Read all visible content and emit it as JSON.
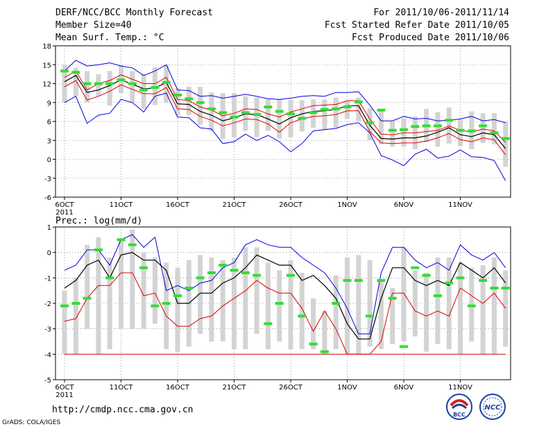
{
  "header": {
    "title": "DERF/NCC/BCC Monthly Forecast",
    "member": "Member Size=40",
    "variable": "Mean Surf. Temp.: °C",
    "period": "For 2011/10/06-2011/11/14",
    "refer": "Fcst Started Refer Date 2011/10/05",
    "produced": "Fcst Produced Date 2011/10/06"
  },
  "footer": {
    "url": "http://cmdp.ncc.cma.gov.cn",
    "grads": "GrADS: COLA/IGES"
  },
  "logos": {
    "bcc": "BCC",
    "ncc": "NCC"
  },
  "colors": {
    "bars": "#d3d3d3",
    "median": "#33dd33",
    "mean": "#000000",
    "spread": "#dd0000",
    "extreme": "#0000dd"
  },
  "chart_data": [
    {
      "type": "line",
      "title": "Mean Surf. Temp.: °C",
      "x_ticks": [
        "6OCT",
        "11OCT",
        "16OCT",
        "21OCT",
        "26OCT",
        "1NOV",
        "6NOV",
        "11NOV"
      ],
      "x_year": "2011",
      "days": 40,
      "ylim": [
        -6,
        18
      ],
      "yticks": [
        -6,
        -3,
        0,
        3,
        6,
        9,
        12,
        15,
        18
      ],
      "series": [
        {
          "name": "max",
          "values": [
            9,
            10,
            5.7,
            7,
            7.3,
            9.5,
            9,
            7.5,
            10,
            10.5,
            6.7,
            6.6,
            5,
            4.8,
            2.5,
            2.8,
            4,
            3,
            3.8,
            2.8,
            1.2,
            2.5,
            4.5,
            4.7,
            4.9,
            5.5,
            5.8,
            4.2,
            0.6,
            -0.1,
            -1,
            0.8,
            1.6,
            0.2,
            0.5,
            1.5,
            0.4,
            0.3,
            -0.2,
            -3.4
          ]
        },
        {
          "name": "min_blue",
          "values": [
            14,
            15.7,
            14.8,
            15,
            15.3,
            14.8,
            14.5,
            13.3,
            14,
            15,
            11,
            10.9,
            10,
            10.1,
            9.7,
            10,
            10.3,
            10,
            9.6,
            9.5,
            9.7,
            10,
            10.1,
            10,
            10.6,
            10.6,
            10.7,
            8.6,
            6.1,
            6.1,
            6.8,
            6.4,
            6.5,
            6.1,
            6.2,
            6.4,
            6.8,
            6.1,
            6.3,
            5.8
          ]
        },
        {
          "name": "upper",
          "values": [
            13,
            14,
            11,
            12,
            12.5,
            13.4,
            12.7,
            12,
            12,
            13,
            9.5,
            9.3,
            8.3,
            7.8,
            6.9,
            7.3,
            8,
            7.9,
            7.2,
            6.7,
            7.5,
            8,
            8.5,
            8.6,
            8.7,
            9.3,
            9.3,
            6.4,
            4,
            3.9,
            4.2,
            4.2,
            4.4,
            4.6,
            5.3,
            4.6,
            4.3,
            4.8,
            4.5,
            2.7
          ]
        },
        {
          "name": "mean",
          "values": [
            12.3,
            13.3,
            10.6,
            11,
            11.7,
            12.6,
            11.9,
            11.2,
            11.3,
            12.2,
            8.8,
            8.7,
            7.6,
            7,
            6.1,
            6.6,
            7.2,
            7.1,
            6.4,
            5.6,
            6.6,
            7.2,
            7.6,
            7.7,
            7.9,
            8.5,
            8.5,
            5.4,
            3.3,
            3.2,
            3.4,
            3.4,
            3.7,
            4.3,
            5,
            3.9,
            3.6,
            4.2,
            3.9,
            1.7
          ]
        },
        {
          "name": "lower",
          "values": [
            11.5,
            12.5,
            9.4,
            10,
            10.8,
            11.8,
            11.1,
            10.4,
            10.4,
            11.4,
            8,
            7.9,
            6.8,
            6.2,
            5.3,
            5.8,
            6.4,
            6.3,
            5.6,
            4.3,
            5.8,
            6.4,
            6.8,
            6.9,
            7.1,
            7.7,
            7.7,
            4.4,
            2.6,
            2.5,
            2.6,
            2.6,
            2.9,
            3.4,
            4.1,
            3.1,
            2.8,
            3.4,
            3.1,
            0.7
          ]
        },
        {
          "name": "median",
          "values": [
            14,
            13.8,
            12,
            12,
            12,
            12.6,
            12,
            11,
            11.4,
            12.2,
            10.2,
            9.6,
            9,
            8,
            7.4,
            6.7,
            7.4,
            7.1,
            8.3,
            7.6,
            7.2,
            6.5,
            7.4,
            7.9,
            8,
            8.3,
            9.1,
            5.8,
            7.8,
            4.6,
            4.7,
            5.2,
            5.3,
            5.3,
            6.2,
            4.6,
            4.5,
            5.3,
            4.2,
            3.3
          ]
        },
        {
          "name": "bar_top",
          "values": [
            15,
            14.5,
            14,
            13.5,
            14,
            15,
            14,
            13.5,
            14.6,
            15,
            11.3,
            11.5,
            11.5,
            10.6,
            10.5,
            10.5,
            10,
            9.8,
            9.5,
            9.5,
            9.4,
            9.4,
            9.5,
            9.5,
            9.8,
            9.3,
            9.8,
            8.1,
            7.7,
            6,
            6.5,
            6.8,
            8,
            7.5,
            8.2,
            6.3,
            7.6,
            7.3,
            7.3,
            6
          ]
        },
        {
          "name": "bar_bottom",
          "values": [
            9,
            10,
            9,
            10,
            8.5,
            10.5,
            9,
            8,
            8.6,
            9,
            7,
            7,
            5.5,
            4.5,
            3.2,
            3.5,
            4.5,
            3.5,
            4.5,
            3.3,
            3.5,
            4.4,
            5,
            4.6,
            5,
            6.4,
            6.1,
            3,
            2.4,
            2,
            2,
            1.6,
            2.7,
            2,
            2.5,
            2.1,
            1.6,
            2.6,
            2.4,
            -1.2
          ]
        }
      ]
    },
    {
      "type": "line",
      "title": "Prec.: log(mm/d)",
      "x_ticks": [
        "6OCT",
        "11OCT",
        "16OCT",
        "21OCT",
        "26OCT",
        "1NOV",
        "6NOV",
        "11NOV"
      ],
      "x_year": "2011",
      "days": 40,
      "ylim": [
        -5,
        1
      ],
      "yticks": [
        -5,
        -4,
        -3,
        -2,
        -1,
        0,
        1
      ],
      "series": [
        {
          "name": "max",
          "values": [
            -0.7,
            -0.5,
            0.1,
            0.1,
            -0.5,
            0.5,
            0.7,
            0.2,
            0.6,
            -1.5,
            -1.3,
            -1.5,
            -1.2,
            -1.1,
            -0.6,
            -0.4,
            0.3,
            0.5,
            0.3,
            0.2,
            0.2,
            -0.2,
            -0.5,
            -0.8,
            -1.4,
            -2.2,
            -3.2,
            -3.2,
            -0.8,
            0.2,
            0.2,
            -0.3,
            -0.6,
            -0.4,
            -0.7,
            0.3,
            -0.1,
            -0.3,
            0,
            -0.6
          ]
        },
        {
          "name": "mean",
          "values": [
            -1.4,
            -1.1,
            -0.5,
            -0.3,
            -1,
            -0.1,
            0,
            -0.3,
            -0.3,
            -0.7,
            -2,
            -2,
            -1.6,
            -1.6,
            -1.2,
            -1,
            -0.6,
            -0.1,
            -0.3,
            -0.5,
            -0.5,
            -1.1,
            -0.9,
            -1.3,
            -1.8,
            -2.8,
            -3.4,
            -3.4,
            -1.8,
            -0.6,
            -0.6,
            -1.1,
            -1.3,
            -1.1,
            -1.3,
            -0.4,
            -0.7,
            -1,
            -0.6,
            -1.2
          ]
        },
        {
          "name": "lower",
          "values": [
            -2.7,
            -2.6,
            -1.8,
            -1.3,
            -1.3,
            -0.8,
            -0.8,
            -1.7,
            -1.6,
            -2.5,
            -2.9,
            -2.9,
            -2.6,
            -2.5,
            -2.1,
            -1.8,
            -1.5,
            -1.1,
            -1.4,
            -1.6,
            -1.6,
            -2.2,
            -3.1,
            -2.3,
            -3,
            -4,
            -4,
            -4,
            -3.5,
            -1.6,
            -1.6,
            -2.3,
            -2.5,
            -2.3,
            -2.5,
            -1.4,
            -1.7,
            -2,
            -1.6,
            -2.2
          ]
        },
        {
          "name": "median",
          "values": [
            -2.1,
            -2,
            -1.8,
            0.1,
            -1,
            0.5,
            0.3,
            -0.6,
            -2.1,
            -2,
            -1.7,
            -1.4,
            -1,
            -0.8,
            -0.5,
            -0.7,
            -0.8,
            -0.9,
            -2.8,
            -2,
            -0.9,
            -2.5,
            -3.6,
            -3.9,
            -2,
            -1.1,
            -1.1,
            -2.5,
            -1.1,
            -1.8,
            -3.7,
            -0.6,
            -0.9,
            -1.7,
            -1.2,
            -1,
            -2.1,
            -1.1,
            -1.4,
            -1.4
          ]
        },
        {
          "name": "bar_top",
          "values": [
            -1.5,
            -1,
            0.3,
            0.6,
            -0.2,
            0.5,
            0.9,
            0,
            -0.2,
            -0.4,
            -0.6,
            -0.3,
            -0.1,
            -0.2,
            -0.3,
            -0.2,
            0.2,
            0.2,
            -0.4,
            -0.7,
            -0.3,
            -0.8,
            -1.8,
            -2.3,
            -0.9,
            -0.2,
            -0.1,
            -0.3,
            -1.1,
            -1.4,
            0.2,
            -0.7,
            -0.8,
            -0.2,
            -0.2,
            -0.4,
            -0.6,
            -0.5,
            -0.2,
            -0.7
          ]
        },
        {
          "name": "bar_bottom",
          "values": [
            -4,
            -4,
            -3,
            -4,
            -3.8,
            -3,
            -3,
            -3,
            -2.8,
            -3.8,
            -3.9,
            -3.7,
            -3.2,
            -3.5,
            -3.5,
            -3.8,
            -3.8,
            -3.2,
            -3.8,
            -3.5,
            -3.8,
            -3.8,
            -3.8,
            -4,
            -3.8,
            -4,
            -4,
            -3.7,
            -3.8,
            -3.6,
            -3.5,
            -3.3,
            -3.9,
            -3.6,
            -3.8,
            -4,
            -3.5,
            -4,
            -4,
            -3.7
          ]
        },
        {
          "name": "floor",
          "values": [
            -4,
            -4,
            -4,
            -4,
            -4,
            -4,
            -4,
            -4,
            -4,
            -4,
            -4,
            -4,
            -4,
            -4,
            -4,
            -4,
            -4,
            -4,
            -4,
            -4,
            -4,
            -4,
            -4,
            -4,
            -4,
            -4,
            -4,
            -4,
            -4,
            -4,
            -4,
            -4,
            -4,
            -4,
            -4,
            -4,
            -4,
            -4,
            -4,
            -4
          ]
        }
      ]
    }
  ]
}
